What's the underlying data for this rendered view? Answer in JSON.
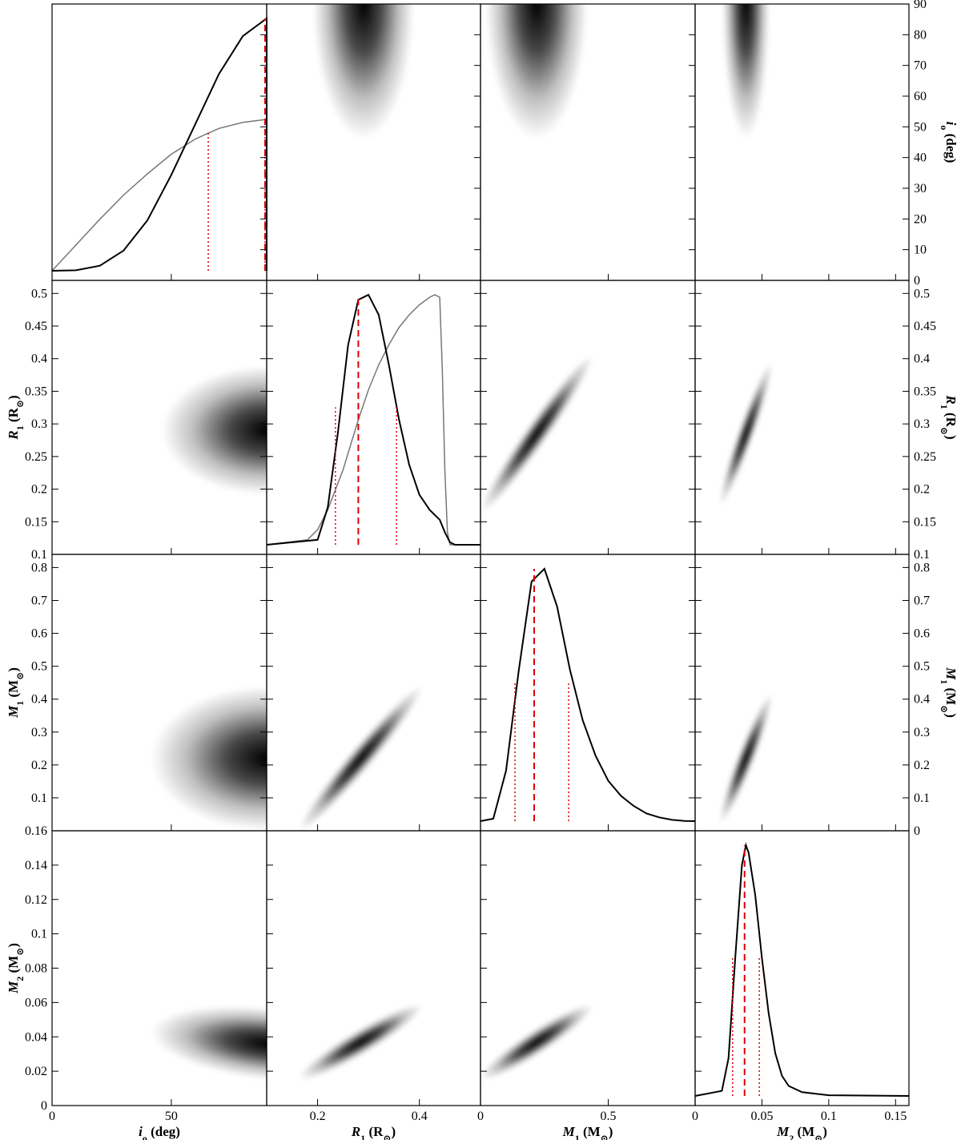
{
  "chart_data": {
    "type": "corner",
    "parameters": [
      {
        "key": "i",
        "label": "i",
        "sub": "o",
        "unit": " (deg)",
        "unit_italic": false,
        "range": [
          0,
          90
        ],
        "ticks": [
          0,
          50
        ],
        "right_ticks": [
          0,
          10,
          20,
          30,
          40,
          50,
          60,
          70,
          80,
          90
        ]
      },
      {
        "key": "R1",
        "label": "R",
        "sub": "1",
        "unit": " (R",
        "unit_sub": "⊙",
        "unit_close": ")",
        "range": [
          0.1,
          0.52
        ],
        "ticks": [
          0.2,
          0.4
        ],
        "left_ticks": [
          0.1,
          0.15,
          0.2,
          0.25,
          0.3,
          0.35,
          0.4,
          0.45,
          0.5
        ],
        "right_ticks": [
          0.1,
          0.15,
          0.2,
          0.25,
          0.3,
          0.35,
          0.4,
          0.45,
          0.5
        ]
      },
      {
        "key": "M1",
        "label": "M",
        "sub": "1",
        "unit": " (M",
        "unit_sub": "⊙",
        "unit_close": ")",
        "range": [
          0,
          0.84
        ],
        "ticks": [
          0,
          0.5
        ],
        "left_ticks": [
          0.1,
          0.2,
          0.3,
          0.4,
          0.5,
          0.6,
          0.7,
          0.8
        ],
        "right_ticks": [
          0,
          0.1,
          0.2,
          0.3,
          0.4,
          0.5,
          0.6,
          0.7,
          0.8
        ]
      },
      {
        "key": "M2",
        "label": "M",
        "sub": "2",
        "unit": " (M",
        "unit_sub": "⊙",
        "unit_close": ")",
        "range": [
          0,
          0.16
        ],
        "ticks": [
          0,
          0.05,
          0.1,
          0.15
        ],
        "left_ticks": [
          0,
          0.02,
          0.04,
          0.06,
          0.08,
          0.1,
          0.12,
          0.14,
          0.16
        ]
      }
    ],
    "tick_text": {
      "i": [
        "0",
        "50"
      ],
      "i_right": [
        "0",
        "10",
        "20",
        "30",
        "40",
        "50",
        "60",
        "70",
        "80",
        "90"
      ],
      "R1": [
        "0.2",
        "0.4"
      ],
      "R1_left": [
        "0.1",
        "0.15",
        "0.2",
        "0.25",
        "0.3",
        "0.35",
        "0.4",
        "0.45",
        "0.5"
      ],
      "M1": [
        "0",
        "0.5"
      ],
      "M1_left": [
        "0.1",
        "0.2",
        "0.3",
        "0.4",
        "0.5",
        "0.6",
        "0.7",
        "0.8"
      ],
      "M1_right": [
        "0",
        "0.1",
        "0.2",
        "0.3",
        "0.4",
        "0.5",
        "0.6",
        "0.7",
        "0.8"
      ],
      "M2": [
        "0",
        "0.05",
        "0.1",
        "0.15"
      ],
      "M2_left": [
        "0",
        "0.02",
        "0.04",
        "0.06",
        "0.08",
        "0.1",
        "0.12",
        "0.14",
        "0.16"
      ]
    },
    "marginals": [
      {
        "parameter": "i",
        "posterior": {
          "x": [
            0,
            10,
            20,
            30,
            40,
            50,
            60,
            70,
            80,
            90
          ],
          "y": [
            0.0,
            0.002,
            0.02,
            0.08,
            0.2,
            0.38,
            0.58,
            0.78,
            0.93,
            1.0
          ]
        },
        "prior": {
          "x": [
            0,
            10,
            20,
            30,
            40,
            50,
            60,
            70,
            80,
            90
          ],
          "y": [
            0.0,
            0.17,
            0.34,
            0.5,
            0.64,
            0.77,
            0.87,
            0.94,
            0.98,
            1.0
          ],
          "scale": 0.6
        },
        "median": 90,
        "interval": [
          65.5,
          90
        ]
      },
      {
        "parameter": "R1",
        "posterior": {
          "x": [
            0.1,
            0.2,
            0.22,
            0.24,
            0.26,
            0.28,
            0.3,
            0.32,
            0.34,
            0.36,
            0.38,
            0.4,
            0.42,
            0.44,
            0.45,
            0.46,
            0.47,
            0.52
          ],
          "y": [
            0.0,
            0.02,
            0.15,
            0.45,
            0.8,
            0.98,
            1.0,
            0.92,
            0.72,
            0.5,
            0.32,
            0.2,
            0.14,
            0.1,
            0.05,
            0.01,
            0.0,
            0.0
          ]
        },
        "prior": {
          "x": [
            0.1,
            0.18,
            0.2,
            0.22,
            0.25,
            0.28,
            0.3,
            0.32,
            0.34,
            0.36,
            0.38,
            0.4,
            0.42,
            0.43,
            0.44,
            0.445,
            0.45,
            0.455,
            0.46,
            0.52
          ],
          "y": [
            0.0,
            0.02,
            0.06,
            0.14,
            0.3,
            0.5,
            0.62,
            0.72,
            0.8,
            0.87,
            0.92,
            0.96,
            0.99,
            1.0,
            0.99,
            0.7,
            0.3,
            0.05,
            0.0,
            0.0
          ]
        },
        "median": 0.28,
        "interval": [
          0.235,
          0.355
        ]
      },
      {
        "parameter": "M1",
        "posterior": {
          "x": [
            0,
            0.05,
            0.1,
            0.15,
            0.2,
            0.25,
            0.3,
            0.35,
            0.4,
            0.45,
            0.5,
            0.55,
            0.6,
            0.65,
            0.7,
            0.75,
            0.8,
            0.84
          ],
          "y": [
            0.0,
            0.01,
            0.2,
            0.6,
            0.95,
            1.0,
            0.85,
            0.6,
            0.4,
            0.26,
            0.16,
            0.1,
            0.06,
            0.03,
            0.015,
            0.005,
            0.001,
            0.0
          ]
        },
        "median": 0.21,
        "interval": [
          0.135,
          0.345
        ]
      },
      {
        "parameter": "M2",
        "posterior": {
          "x": [
            0,
            0.02,
            0.025,
            0.03,
            0.035,
            0.038,
            0.04,
            0.045,
            0.05,
            0.055,
            0.06,
            0.065,
            0.07,
            0.08,
            0.1,
            0.16
          ],
          "y": [
            0.0,
            0.02,
            0.15,
            0.55,
            0.92,
            1.0,
            0.97,
            0.8,
            0.55,
            0.33,
            0.17,
            0.08,
            0.04,
            0.015,
            0.003,
            0.0
          ]
        },
        "median": 0.037,
        "interval": [
          0.028,
          0.048
        ]
      }
    ],
    "joint_densities": [
      {
        "x": "R1",
        "y": "i",
        "peak": [
          0.29,
          90
        ],
        "sigma": [
          0.045,
          20
        ],
        "corr": 0.0
      },
      {
        "x": "M1",
        "y": "i",
        "peak": [
          0.22,
          90
        ],
        "sigma": [
          0.09,
          20
        ],
        "corr": 0.0
      },
      {
        "x": "M2",
        "y": "i",
        "peak": [
          0.038,
          90
        ],
        "sigma": [
          0.008,
          20
        ],
        "corr": 0.0
      },
      {
        "x": "i",
        "y": "R1",
        "peak": [
          90,
          0.29
        ],
        "sigma": [
          20,
          0.045
        ],
        "corr": 0.0
      },
      {
        "x": "M1",
        "y": "R1",
        "peak": [
          0.22,
          0.285
        ],
        "sigma": [
          0.1,
          0.055
        ],
        "corr": 0.97
      },
      {
        "x": "M2",
        "y": "R1",
        "peak": [
          0.038,
          0.285
        ],
        "sigma": [
          0.009,
          0.05
        ],
        "corr": 0.95
      },
      {
        "x": "i",
        "y": "M1",
        "peak": [
          90,
          0.22
        ],
        "sigma": [
          22,
          0.1
        ],
        "corr": 0.0
      },
      {
        "x": "R1",
        "y": "M1",
        "peak": [
          0.285,
          0.22
        ],
        "sigma": [
          0.055,
          0.1
        ],
        "corr": 0.97
      },
      {
        "x": "M2",
        "y": "M1",
        "peak": [
          0.038,
          0.22
        ],
        "sigma": [
          0.009,
          0.09
        ],
        "corr": 0.94
      },
      {
        "x": "i",
        "y": "M2",
        "peak": [
          90,
          0.036
        ],
        "sigma": [
          22,
          0.01
        ],
        "corr": -0.3
      },
      {
        "x": "R1",
        "y": "M2",
        "peak": [
          0.285,
          0.037
        ],
        "sigma": [
          0.055,
          0.01
        ],
        "corr": 0.93
      },
      {
        "x": "M1",
        "y": "M2",
        "peak": [
          0.22,
          0.037
        ],
        "sigma": [
          0.1,
          0.01
        ],
        "corr": 0.93
      }
    ],
    "colors": {
      "posterior": "#000000",
      "prior": "#777777",
      "median": "#e00000",
      "interval": "#e00000",
      "density": "#000000"
    }
  }
}
